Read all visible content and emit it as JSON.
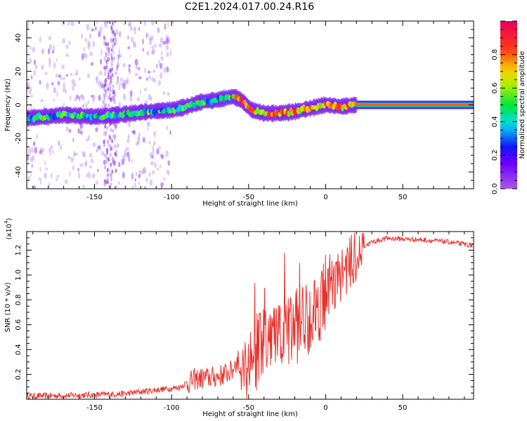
{
  "title": "C2E1.2024.017.00.24.R16",
  "chart_data": [
    {
      "type": "heatmap",
      "name": "spectrogram",
      "xlabel": "Height of straight line (km)",
      "ylabel": "Frequency (Hz)",
      "xlim": [
        -194,
        96
      ],
      "ylim": [
        -50,
        50
      ],
      "x_ticks": [
        -150,
        -100,
        -50,
        0,
        50
      ],
      "y_ticks": [
        -40,
        -20,
        0,
        20,
        40
      ],
      "ridge_center_hz": [
        {
          "x": -194,
          "y": -8
        },
        {
          "x": -170,
          "y": -6
        },
        {
          "x": -150,
          "y": -7
        },
        {
          "x": -135,
          "y": -6
        },
        {
          "x": -115,
          "y": -4
        },
        {
          "x": -100,
          "y": -3
        },
        {
          "x": -90,
          "y": -1
        },
        {
          "x": -80,
          "y": 2
        },
        {
          "x": -70,
          "y": 3
        },
        {
          "x": -60,
          "y": 5
        },
        {
          "x": -55,
          "y": 3
        },
        {
          "x": -48,
          "y": -3
        },
        {
          "x": -40,
          "y": -5
        },
        {
          "x": -30,
          "y": -5
        },
        {
          "x": -20,
          "y": -4
        },
        {
          "x": -10,
          "y": -2
        },
        {
          "x": 0,
          "y": 0
        },
        {
          "x": 10,
          "y": -1
        },
        {
          "x": 20,
          "y": 0
        },
        {
          "x": 96,
          "y": 0
        }
      ],
      "colorbar": {
        "label": "Normalized spectral amplitude",
        "range": [
          0,
          1
        ],
        "ticks": [
          "0.0",
          "0.2",
          "0.4",
          "0.6",
          "0.8"
        ]
      }
    },
    {
      "type": "line",
      "name": "snr",
      "xlabel": "Height of straight line (km)",
      "ylabel": "SNR (10 * v/v)",
      "y_scale_label": "(x10",
      "y_scale_exp": "4",
      "xlim": [
        -194,
        96
      ],
      "ylim": [
        0,
        1.35
      ],
      "x_ticks": [
        -150,
        -100,
        -50,
        0,
        50
      ],
      "y_ticks": [
        "0.2",
        "0.4",
        "0.6",
        "0.8",
        "1.0",
        "1.2"
      ],
      "color": "#e8302c",
      "envelope": [
        {
          "x": -194,
          "y": 0.03
        },
        {
          "x": -150,
          "y": 0.04
        },
        {
          "x": -130,
          "y": 0.05
        },
        {
          "x": -110,
          "y": 0.08
        },
        {
          "x": -95,
          "y": 0.1
        },
        {
          "x": -85,
          "y": 0.18
        },
        {
          "x": -70,
          "y": 0.2
        },
        {
          "x": -60,
          "y": 0.25
        },
        {
          "x": -50,
          "y": 0.35
        },
        {
          "x": -40,
          "y": 0.5
        },
        {
          "x": -30,
          "y": 0.55
        },
        {
          "x": -20,
          "y": 0.65
        },
        {
          "x": -10,
          "y": 0.75
        },
        {
          "x": 0,
          "y": 0.9
        },
        {
          "x": 10,
          "y": 1.05
        },
        {
          "x": 20,
          "y": 1.2
        },
        {
          "x": 30,
          "y": 1.27
        },
        {
          "x": 40,
          "y": 1.3
        },
        {
          "x": 60,
          "y": 1.29
        },
        {
          "x": 80,
          "y": 1.27
        },
        {
          "x": 96,
          "y": 1.24
        }
      ]
    }
  ]
}
